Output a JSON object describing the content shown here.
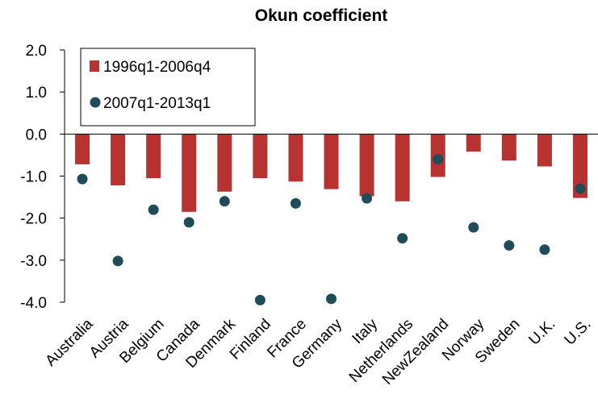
{
  "chart_data": {
    "type": "bar",
    "title": "Okun coefficient",
    "categories": [
      "Australia",
      "Austria",
      "Belgium",
      "Canada",
      "Denmark",
      "Finland",
      "France",
      "Germany",
      "Italy",
      "Netherlands",
      "NewZealand",
      "Norway",
      "Sweden",
      "U.K.",
      "U.S."
    ],
    "series": [
      {
        "name": "1996q1-2006q4",
        "type": "bar",
        "color": "#b8322f",
        "values": [
          -0.72,
          -1.22,
          -1.05,
          -1.85,
          -1.37,
          -1.05,
          -1.13,
          -1.31,
          -1.48,
          -1.6,
          -1.02,
          -0.42,
          -0.63,
          -0.77,
          -1.52
        ]
      },
      {
        "name": "2007q1-2013q1",
        "type": "scatter",
        "color": "#1f4c58",
        "values": [
          -1.07,
          -3.02,
          -1.8,
          -2.1,
          -1.6,
          -3.95,
          -1.65,
          -3.92,
          -1.53,
          -2.48,
          -0.6,
          -2.22,
          -2.65,
          -2.75,
          -1.3
        ]
      }
    ],
    "ylim": [
      -4.0,
      2.0
    ],
    "yticks": [
      {
        "value": 2,
        "label": "2.0"
      },
      {
        "value": 1,
        "label": "1.0"
      },
      {
        "value": 0,
        "label": "0.0"
      },
      {
        "value": -1,
        "label": "-1.0"
      },
      {
        "value": -2,
        "label": "-2.0"
      },
      {
        "value": -3,
        "label": "-3.0"
      },
      {
        "value": -4,
        "label": "-4.0"
      }
    ],
    "legend": "top-left"
  }
}
